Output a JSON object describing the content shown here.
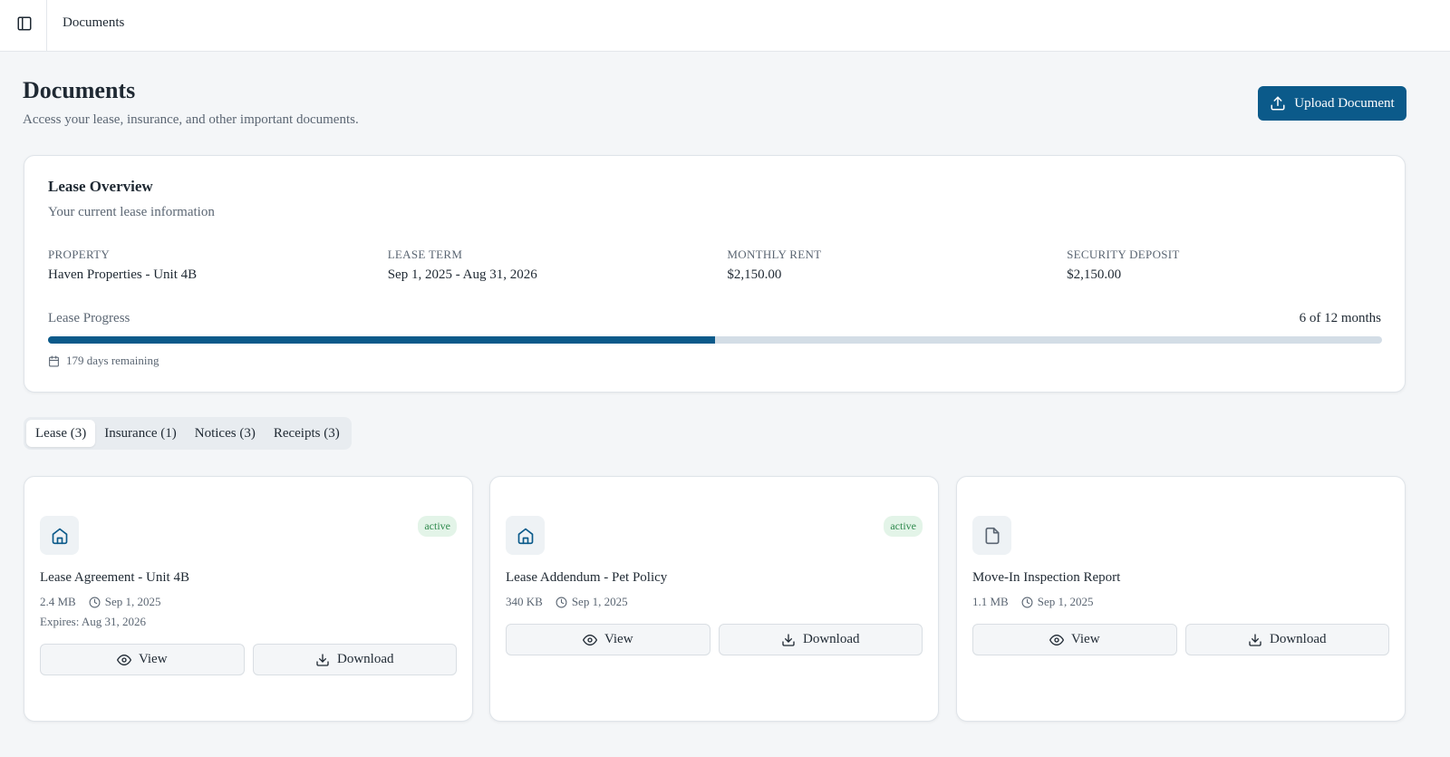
{
  "topbar": {
    "title": "Documents"
  },
  "header": {
    "title": "Documents",
    "subtitle": "Access your lease, insurance, and other important documents.",
    "upload_button": "Upload Document"
  },
  "lease_overview": {
    "title": "Lease Overview",
    "subtitle": "Your current lease information",
    "fields": [
      {
        "label": "PROPERTY",
        "value": "Haven Properties - Unit 4B"
      },
      {
        "label": "LEASE TERM",
        "value": "Sep 1, 2025 - Aug 31, 2026"
      },
      {
        "label": "MONTHLY RENT",
        "value": "$2,150.00"
      },
      {
        "label": "SECURITY DEPOSIT",
        "value": "$2,150.00"
      }
    ],
    "progress": {
      "label": "Lease Progress",
      "value_label": "6 of 12 months",
      "elapsed": 6,
      "total": 12,
      "remaining": "179 days remaining"
    }
  },
  "tabs": [
    {
      "label": "Lease (3)",
      "active": true
    },
    {
      "label": "Insurance (1)",
      "active": false
    },
    {
      "label": "Notices (3)",
      "active": false
    },
    {
      "label": "Receipts (3)",
      "active": false
    }
  ],
  "documents": [
    {
      "icon": "home",
      "status": "active",
      "title": "Lease Agreement - Unit 4B",
      "size": "2.4 MB",
      "date": "Sep 1, 2025",
      "expires": "Expires: Aug 31, 2026",
      "actions": [
        "View",
        "Download"
      ]
    },
    {
      "icon": "home",
      "status": "active",
      "title": "Lease Addendum - Pet Policy",
      "size": "340 KB",
      "date": "Sep 1, 2025",
      "actions": [
        "View",
        "Download"
      ]
    },
    {
      "icon": "file",
      "title": "Move-In Inspection Report",
      "size": "1.1 MB",
      "date": "Sep 1, 2025",
      "actions": [
        "View",
        "Download"
      ]
    }
  ]
}
